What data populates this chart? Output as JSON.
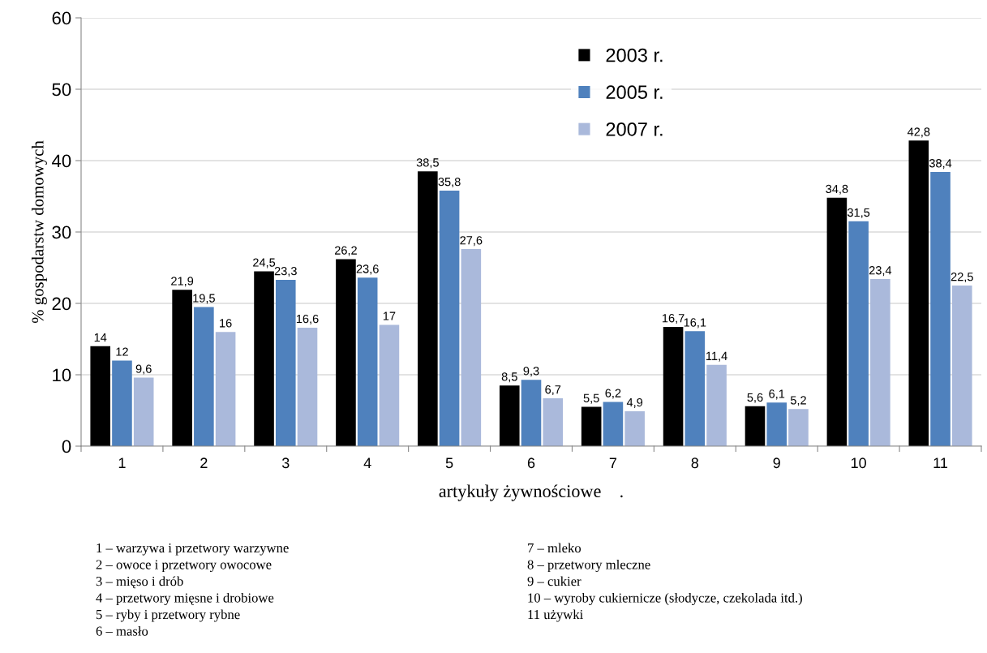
{
  "chart_data": {
    "type": "bar",
    "xlabel": "artykuły żywnościowe    .",
    "ylabel": "% gospodarstw domowych",
    "categories": [
      "1",
      "2",
      "3",
      "4",
      "5",
      "6",
      "7",
      "8",
      "9",
      "10",
      "11"
    ],
    "series": [
      {
        "name": "2003 r.",
        "color": "#000000",
        "values": [
          14,
          21.9,
          24.5,
          26.2,
          38.5,
          8.5,
          5.5,
          16.7,
          5.6,
          34.8,
          42.8
        ]
      },
      {
        "name": "2005 r.",
        "color": "#4f81bd",
        "values": [
          12,
          19.5,
          23.3,
          23.6,
          35.8,
          9.3,
          6.2,
          16.1,
          6.1,
          31.5,
          38.4
        ]
      },
      {
        "name": "2007 r.",
        "color": "#aab9db",
        "values": [
          9.6,
          16,
          16.6,
          17,
          27.6,
          6.7,
          4.9,
          11.4,
          5.2,
          23.4,
          22.5
        ]
      }
    ],
    "value_labels": [
      [
        "14",
        "21,9",
        "24,5",
        "26,2",
        "38,5",
        "8,5",
        "5,5",
        "16,7",
        "5,6",
        "34,8",
        "42,8"
      ],
      [
        "12",
        "19,5",
        "23,3",
        "23,6",
        "35,8",
        "9,3",
        "6,2",
        "16,1",
        "6,1",
        "31,5",
        "38,4"
      ],
      [
        "9,6",
        "16",
        "16,6",
        "17",
        "27,6",
        "6,7",
        "4,9",
        "11,4",
        "5,2",
        "23,4",
        "22,5"
      ]
    ],
    "ylim": [
      0,
      60
    ],
    "yticks": [
      0,
      10,
      20,
      30,
      40,
      50,
      60
    ],
    "grid": "y",
    "legend": "top",
    "annotations": [
      "1 – warzywa i przetwory warzywne",
      "2 – owoce i przetwory owocowe",
      "3 – mięso i drób",
      "4 – przetwory mięsne i drobiowe",
      "5 – ryby i przetwory rybne",
      "6 – masło",
      "7 – mleko",
      "8 – przetwory mleczne",
      "9 – cukier",
      "10 – wyroby cukiernicze (słodycze, czekolada itd.)",
      "11 używki"
    ]
  }
}
